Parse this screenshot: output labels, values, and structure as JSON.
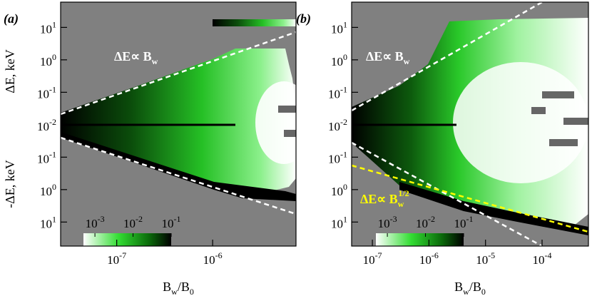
{
  "chart_data": [
    {
      "type": "heatmap",
      "label": "(a)",
      "xlim": [
        2.6e-08,
        7.4e-06
      ],
      "xticks": [
        {
          "value": 1e-07,
          "label": "10",
          "exponent": "-7"
        },
        {
          "value": 1e-06,
          "label": "10",
          "exponent": "-6"
        }
      ],
      "ylim": [
        -55,
        60
      ],
      "yticks": [
        {
          "value": 10,
          "label": "10",
          "exponent": "1"
        },
        {
          "value": 1,
          "label": "10",
          "exponent": "0"
        },
        {
          "value": 0.1,
          "label": "10",
          "exponent": "-1"
        },
        {
          "value": 0.01,
          "label": "10",
          "exponent": "-2"
        },
        {
          "value": -0.1,
          "label": "10",
          "exponent": "-1"
        },
        {
          "value": -1,
          "label": "10",
          "exponent": "0"
        },
        {
          "value": -10,
          "label": "10",
          "exponent": "1"
        }
      ],
      "xlabel_parts": [
        "B",
        "w",
        "/B",
        "0"
      ],
      "clim": [
        0.0005,
        0.1
      ],
      "cticks": [
        {
          "value": 0.001,
          "label": "10",
          "exponent": "-3"
        },
        {
          "value": 0.01,
          "label": "10",
          "exponent": "-2"
        },
        {
          "value": 0.1,
          "label": "10",
          "exponent": "-1"
        }
      ],
      "annotations": [
        {
          "text": "ΔE∝ B",
          "sub": "w",
          "color": "#ffffff"
        }
      ]
    },
    {
      "type": "heatmap",
      "label": "(b)",
      "xlim": [
        4.3e-08,
        0.00066
      ],
      "xticks": [
        {
          "value": 1e-07,
          "label": "10",
          "exponent": "-7"
        },
        {
          "value": 1e-06,
          "label": "10",
          "exponent": "-6"
        },
        {
          "value": 1e-05,
          "label": "10",
          "exponent": "-5"
        },
        {
          "value": 0.0001,
          "label": "10",
          "exponent": "-4"
        }
      ],
      "ylim": [
        -55,
        60
      ],
      "yticks": [
        {
          "value": 10,
          "label": "10",
          "exponent": "1"
        },
        {
          "value": 1,
          "label": "10",
          "exponent": "0"
        },
        {
          "value": 0.1,
          "label": "10",
          "exponent": "-1"
        },
        {
          "value": 0.01,
          "label": "10",
          "exponent": "-2"
        },
        {
          "value": -0.1,
          "label": "10",
          "exponent": "-1"
        },
        {
          "value": -1,
          "label": "10",
          "exponent": "0"
        },
        {
          "value": -10,
          "label": "10",
          "exponent": "1"
        }
      ],
      "xlabel_parts": [
        "B",
        "w",
        "/B",
        "0"
      ],
      "clim": [
        0.0005,
        0.1
      ],
      "cticks": [
        {
          "value": 0.001,
          "label": "10",
          "exponent": "-3"
        },
        {
          "value": 0.01,
          "label": "10",
          "exponent": "-2"
        },
        {
          "value": 0.1,
          "label": "10",
          "exponent": "-1"
        }
      ],
      "annotations": [
        {
          "text": "ΔE∝ B",
          "sub": "w",
          "color": "#ffffff"
        },
        {
          "text": "ΔE∝ B",
          "sub": "w",
          "sup": "1/2",
          "color": "#ffff00"
        }
      ]
    }
  ],
  "y_labels": [
    "ΔE, keV",
    "-ΔE, keV"
  ]
}
